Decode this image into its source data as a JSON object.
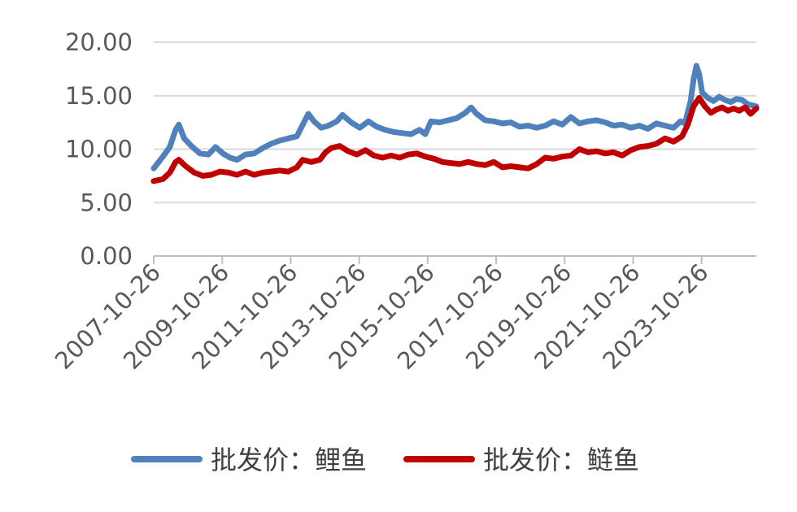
{
  "chart_data": {
    "type": "line",
    "title": "",
    "xlabel": "",
    "ylabel": "",
    "ylim": [
      0,
      20
    ],
    "yticks": [
      "0.00",
      "5.00",
      "10.00",
      "15.00",
      "20.00"
    ],
    "xticks": [
      "2007-10-26",
      "2009-10-26",
      "2011-10-26",
      "2013-10-26",
      "2015-10-26",
      "2017-10-26",
      "2019-10-26",
      "2021-10-26",
      "2023-10-26"
    ],
    "xlim": [
      "2007-10-26",
      "2025-06-01"
    ],
    "grid": true,
    "legend_position": "bottom",
    "series": [
      {
        "name": "批发价：鲤鱼",
        "color": "#4f81bd",
        "points": [
          [
            "2007-10-26",
            8.2
          ],
          [
            "2008-02-01",
            9.3
          ],
          [
            "2008-04-15",
            10.2
          ],
          [
            "2008-06-15",
            11.8
          ],
          [
            "2008-07-20",
            12.3
          ],
          [
            "2008-09-15",
            11.0
          ],
          [
            "2008-12-01",
            10.3
          ],
          [
            "2009-03-01",
            9.6
          ],
          [
            "2009-06-01",
            9.5
          ],
          [
            "2009-08-15",
            10.2
          ],
          [
            "2009-11-01",
            9.6
          ],
          [
            "2010-01-15",
            9.2
          ],
          [
            "2010-04-01",
            9.0
          ],
          [
            "2010-07-01",
            9.5
          ],
          [
            "2010-10-01",
            9.6
          ],
          [
            "2011-01-01",
            10.1
          ],
          [
            "2011-04-01",
            10.5
          ],
          [
            "2011-07-01",
            10.8
          ],
          [
            "2011-10-01",
            11.0
          ],
          [
            "2012-01-01",
            11.2
          ],
          [
            "2012-03-15",
            12.5
          ],
          [
            "2012-05-01",
            13.3
          ],
          [
            "2012-07-01",
            12.6
          ],
          [
            "2012-09-15",
            12.0
          ],
          [
            "2012-12-01",
            12.2
          ],
          [
            "2013-03-01",
            12.6
          ],
          [
            "2013-05-01",
            13.2
          ],
          [
            "2013-08-01",
            12.5
          ],
          [
            "2013-11-01",
            12.0
          ],
          [
            "2014-02-01",
            12.6
          ],
          [
            "2014-05-01",
            12.1
          ],
          [
            "2014-08-01",
            11.8
          ],
          [
            "2014-11-01",
            11.6
          ],
          [
            "2015-02-01",
            11.5
          ],
          [
            "2015-05-01",
            11.4
          ],
          [
            "2015-08-01",
            11.8
          ],
          [
            "2015-10-01",
            11.4
          ],
          [
            "2015-12-01",
            12.6
          ],
          [
            "2016-03-01",
            12.5
          ],
          [
            "2016-06-01",
            12.7
          ],
          [
            "2016-09-01",
            12.9
          ],
          [
            "2016-12-01",
            13.4
          ],
          [
            "2017-02-01",
            13.9
          ],
          [
            "2017-04-01",
            13.3
          ],
          [
            "2017-07-01",
            12.7
          ],
          [
            "2017-10-01",
            12.6
          ],
          [
            "2018-01-01",
            12.4
          ],
          [
            "2018-04-01",
            12.5
          ],
          [
            "2018-07-01",
            12.1
          ],
          [
            "2018-10-01",
            12.2
          ],
          [
            "2019-01-01",
            12.0
          ],
          [
            "2019-04-01",
            12.2
          ],
          [
            "2019-07-01",
            12.6
          ],
          [
            "2019-10-01",
            12.3
          ],
          [
            "2020-01-01",
            13.0
          ],
          [
            "2020-04-01",
            12.4
          ],
          [
            "2020-07-01",
            12.6
          ],
          [
            "2020-10-01",
            12.7
          ],
          [
            "2021-01-01",
            12.5
          ],
          [
            "2021-04-01",
            12.2
          ],
          [
            "2021-07-01",
            12.3
          ],
          [
            "2021-10-01",
            12.0
          ],
          [
            "2022-01-01",
            12.2
          ],
          [
            "2022-04-01",
            11.9
          ],
          [
            "2022-07-01",
            12.4
          ],
          [
            "2022-10-01",
            12.2
          ],
          [
            "2023-01-01",
            12.0
          ],
          [
            "2023-03-15",
            12.6
          ],
          [
            "2023-05-01",
            12.4
          ],
          [
            "2023-07-01",
            14.5
          ],
          [
            "2023-08-01",
            16.5
          ],
          [
            "2023-09-01",
            17.8
          ],
          [
            "2023-10-01",
            17.0
          ],
          [
            "2023-11-01",
            15.3
          ],
          [
            "2024-01-01",
            14.8
          ],
          [
            "2024-03-01",
            14.5
          ],
          [
            "2024-05-01",
            14.9
          ],
          [
            "2024-07-01",
            14.6
          ],
          [
            "2024-09-01",
            14.4
          ],
          [
            "2024-11-01",
            14.7
          ],
          [
            "2025-01-01",
            14.6
          ],
          [
            "2025-03-01",
            14.2
          ],
          [
            "2025-06-01",
            14.0
          ]
        ]
      },
      {
        "name": "批发价：鲢鱼",
        "color": "#c00000",
        "points": [
          [
            "2007-10-26",
            7.0
          ],
          [
            "2008-02-01",
            7.2
          ],
          [
            "2008-04-15",
            7.8
          ],
          [
            "2008-06-15",
            8.8
          ],
          [
            "2008-07-20",
            9.0
          ],
          [
            "2008-10-01",
            8.4
          ],
          [
            "2009-01-01",
            7.8
          ],
          [
            "2009-04-01",
            7.5
          ],
          [
            "2009-07-01",
            7.6
          ],
          [
            "2009-10-01",
            7.9
          ],
          [
            "2010-01-01",
            7.8
          ],
          [
            "2010-04-01",
            7.6
          ],
          [
            "2010-07-01",
            7.9
          ],
          [
            "2010-10-01",
            7.6
          ],
          [
            "2011-01-01",
            7.8
          ],
          [
            "2011-04-01",
            7.9
          ],
          [
            "2011-07-01",
            8.0
          ],
          [
            "2011-10-01",
            7.9
          ],
          [
            "2012-01-01",
            8.3
          ],
          [
            "2012-03-01",
            9.0
          ],
          [
            "2012-06-01",
            8.8
          ],
          [
            "2012-09-01",
            9.0
          ],
          [
            "2012-11-01",
            9.7
          ],
          [
            "2013-01-01",
            10.1
          ],
          [
            "2013-04-01",
            10.3
          ],
          [
            "2013-07-01",
            9.8
          ],
          [
            "2013-10-01",
            9.5
          ],
          [
            "2014-01-01",
            9.9
          ],
          [
            "2014-04-01",
            9.4
          ],
          [
            "2014-07-01",
            9.2
          ],
          [
            "2014-10-01",
            9.4
          ],
          [
            "2015-01-01",
            9.2
          ],
          [
            "2015-04-01",
            9.5
          ],
          [
            "2015-07-01",
            9.6
          ],
          [
            "2015-10-01",
            9.3
          ],
          [
            "2016-01-01",
            9.1
          ],
          [
            "2016-04-01",
            8.8
          ],
          [
            "2016-07-01",
            8.7
          ],
          [
            "2016-10-01",
            8.6
          ],
          [
            "2017-01-01",
            8.8
          ],
          [
            "2017-04-01",
            8.6
          ],
          [
            "2017-07-01",
            8.5
          ],
          [
            "2017-10-01",
            8.8
          ],
          [
            "2018-01-01",
            8.3
          ],
          [
            "2018-04-01",
            8.4
          ],
          [
            "2018-07-01",
            8.3
          ],
          [
            "2018-10-01",
            8.2
          ],
          [
            "2019-01-01",
            8.6
          ],
          [
            "2019-04-01",
            9.2
          ],
          [
            "2019-07-01",
            9.1
          ],
          [
            "2019-10-01",
            9.3
          ],
          [
            "2020-01-01",
            9.4
          ],
          [
            "2020-04-01",
            10.0
          ],
          [
            "2020-07-01",
            9.7
          ],
          [
            "2020-10-01",
            9.8
          ],
          [
            "2021-01-01",
            9.6
          ],
          [
            "2021-04-01",
            9.7
          ],
          [
            "2021-07-01",
            9.4
          ],
          [
            "2021-10-01",
            9.9
          ],
          [
            "2022-01-01",
            10.2
          ],
          [
            "2022-04-01",
            10.3
          ],
          [
            "2022-07-01",
            10.5
          ],
          [
            "2022-10-01",
            11.0
          ],
          [
            "2023-01-01",
            10.7
          ],
          [
            "2023-04-01",
            11.2
          ],
          [
            "2023-06-01",
            12.3
          ],
          [
            "2023-08-01",
            14.0
          ],
          [
            "2023-10-01",
            14.8
          ],
          [
            "2023-12-01",
            14.0
          ],
          [
            "2024-02-01",
            13.4
          ],
          [
            "2024-04-01",
            13.7
          ],
          [
            "2024-06-01",
            13.9
          ],
          [
            "2024-08-01",
            13.6
          ],
          [
            "2024-10-01",
            13.8
          ],
          [
            "2024-12-01",
            13.6
          ],
          [
            "2025-02-01",
            13.9
          ],
          [
            "2025-04-01",
            13.3
          ],
          [
            "2025-06-01",
            13.8
          ]
        ]
      }
    ]
  }
}
